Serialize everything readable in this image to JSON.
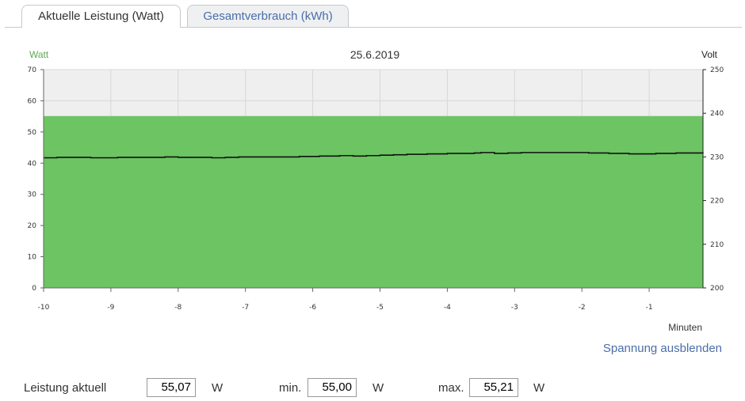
{
  "tabs": [
    {
      "label": "Aktuelle Leistung (Watt)",
      "active": true
    },
    {
      "label": "Gesamtverbrauch (kWh)",
      "active": false
    }
  ],
  "chart_data": {
    "type": "area",
    "title": "25.6.2019",
    "ylabel": "Watt",
    "y2label": "Volt",
    "xlabel": "Minuten",
    "ylim": [
      0,
      70
    ],
    "y2lim": [
      200,
      250
    ],
    "xlim": [
      -10,
      -0.2
    ],
    "yticks": [
      "0",
      "10",
      "20",
      "30",
      "40",
      "50",
      "60",
      "70"
    ],
    "y2ticks": [
      "200",
      "210",
      "220",
      "230",
      "240",
      "250"
    ],
    "xticks": [
      "-10",
      "-9",
      "-8",
      "-7",
      "-6",
      "-5",
      "-4",
      "-3",
      "-2",
      "-1"
    ],
    "grid": true,
    "series": [
      {
        "type": "area",
        "color": "#6cc463",
        "x": [
          -10,
          -0.2
        ],
        "values": [
          55.1,
          55.1
        ]
      },
      {
        "type": "line",
        "axis": "y2",
        "color": "#111111",
        "x": [
          -10,
          -9.8,
          -9.6,
          -9.3,
          -9.2,
          -8.9,
          -8.6,
          -8.3,
          -8.2,
          -8.0,
          -7.7,
          -7.5,
          -7.3,
          -7.1,
          -6.9,
          -6.5,
          -6.2,
          -5.9,
          -5.6,
          -5.4,
          -5.2,
          -5.0,
          -4.8,
          -4.6,
          -4.3,
          -4.0,
          -3.8,
          -3.6,
          -3.5,
          -3.3,
          -3.1,
          -2.9,
          -2.6,
          -2.3,
          -2.1,
          -1.9,
          -1.6,
          -1.3,
          -1.1,
          -0.9,
          -0.6,
          -0.4,
          -0.2
        ],
        "values": [
          229.8,
          229.9,
          229.9,
          229.8,
          229.8,
          229.9,
          229.9,
          229.9,
          230.0,
          229.9,
          229.9,
          229.8,
          229.9,
          230.0,
          230.0,
          230.0,
          230.1,
          230.2,
          230.3,
          230.2,
          230.3,
          230.4,
          230.5,
          230.6,
          230.7,
          230.8,
          230.8,
          230.9,
          231.0,
          230.8,
          230.9,
          231.0,
          231.0,
          231.0,
          231.0,
          230.9,
          230.8,
          230.7,
          230.7,
          230.8,
          230.9,
          230.9,
          230.8
        ]
      }
    ]
  },
  "toggle_link": "Spannung ausblenden",
  "stats": {
    "current_label": "Leistung aktuell",
    "current_value": "55,07",
    "min_label": "min.",
    "min_value": "55,00",
    "max_label": "max.",
    "max_value": "55,21",
    "unit": "W"
  }
}
